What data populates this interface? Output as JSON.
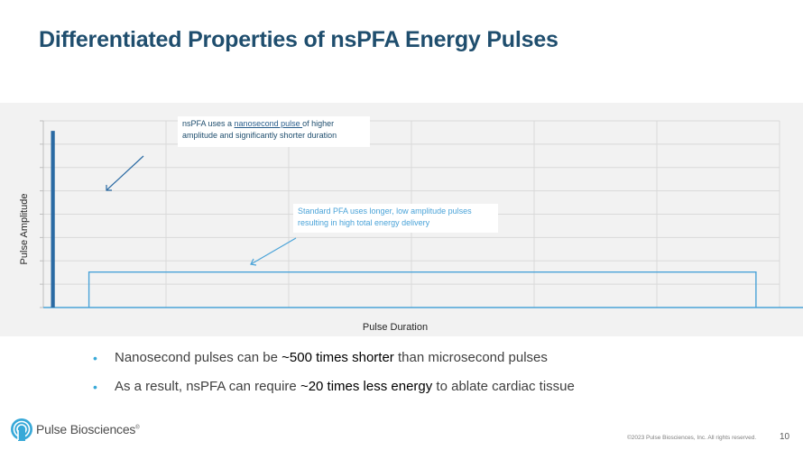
{
  "slide": {
    "title": "Differentiated Properties of nsPFA Energy Pulses",
    "page_number": "10",
    "copyright": "©2023 Pulse Biosciences, Inc. All rights reserved."
  },
  "chart_data": {
    "type": "line",
    "title": "",
    "xlabel": "Pulse Duration",
    "ylabel": "Pulse Amplitude",
    "grid": true,
    "xlim": [
      0,
      100
    ],
    "ylim": [
      0,
      100
    ],
    "series": [
      {
        "name": "nsPFA",
        "color": "#2a6aa3",
        "x": [
          1.2,
          1.2,
          1.4,
          1.4
        ],
        "y": [
          0,
          94,
          94,
          0
        ]
      },
      {
        "name": "Standard PFA",
        "color": "#4aa3d8",
        "x": [
          6.2,
          6.2,
          96.8,
          96.8
        ],
        "y": [
          0,
          19,
          19,
          0
        ]
      }
    ],
    "annotations": {
      "nspfa": {
        "before": "nsPFA uses a ",
        "link": "nanosecond pulse ",
        "after": "of higher",
        "line2": "amplitude and significantly shorter duration"
      },
      "standard": {
        "line1": "Standard PFA uses longer, low amplitude pulses",
        "line2": "resulting in high total energy delivery"
      }
    }
  },
  "bullets": [
    {
      "before": "Nanosecond pulses can be ",
      "emphasis": "~500 times shorter",
      "after": " than microsecond pulses"
    },
    {
      "before": "As a result, nsPFA can require ",
      "emphasis": "~20 times less energy",
      "after": " to ablate cardiac tissue"
    }
  ],
  "logo": {
    "text": "Pulse Biosciences",
    "mark": "®"
  },
  "colors": {
    "title": "#1f4e6e",
    "accent": "#38a9d8",
    "ns_pulse": "#2a6aa3",
    "std_pulse": "#4aa3d8",
    "panel": "#f2f2f2"
  }
}
